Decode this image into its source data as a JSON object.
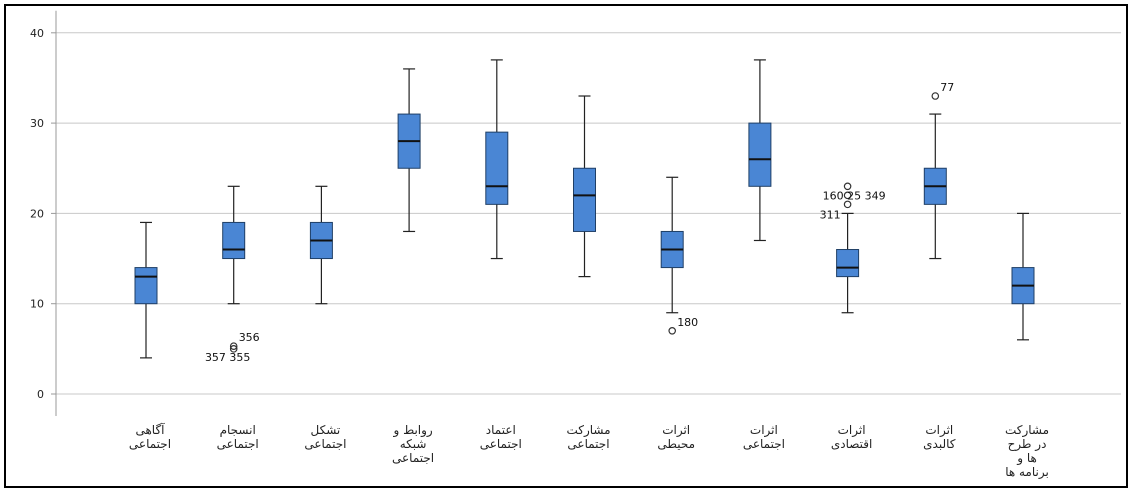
{
  "chart_data": {
    "type": "boxplot",
    "ylim": [
      -2,
      42
    ],
    "yticks": [
      0,
      10,
      20,
      30,
      40
    ],
    "grid": true,
    "colors": {
      "box": "#4a86d4",
      "box_edge": "#1f3f66",
      "grid": "#c8c8c8"
    },
    "categories": [
      {
        "label": [
          "آگاهی",
          "اجتماعی"
        ],
        "min": 4,
        "q1": 10,
        "median": 13,
        "q3": 14,
        "max": 19,
        "outliers": []
      },
      {
        "label": [
          "انسجام",
          "اجتماعی"
        ],
        "min": 10,
        "q1": 15,
        "median": 16,
        "q3": 19,
        "max": 23,
        "outliers": [
          {
            "value": 5.3,
            "ids": [
              "356"
            ]
          },
          {
            "value": 5.0,
            "ids": [
              "357",
              "355"
            ]
          }
        ]
      },
      {
        "label": [
          "تشکل",
          "اجتماعی"
        ],
        "min": 10,
        "q1": 15,
        "median": 17,
        "q3": 19,
        "max": 23,
        "outliers": []
      },
      {
        "label": [
          "روابط و",
          "شبکه",
          "اجتماعی"
        ],
        "min": 18,
        "q1": 25,
        "median": 28,
        "q3": 31,
        "max": 36,
        "outliers": []
      },
      {
        "label": [
          "اعتماد",
          "اجتماعی"
        ],
        "min": 15,
        "q1": 21,
        "median": 23,
        "q3": 29,
        "max": 37,
        "outliers": []
      },
      {
        "label": [
          "مشارکت",
          "اجتماعی"
        ],
        "min": 13,
        "q1": 18,
        "median": 22,
        "q3": 25,
        "max": 33,
        "outliers": []
      },
      {
        "label": [
          "اثرات",
          "محیطی"
        ],
        "min": 9,
        "q1": 14,
        "median": 16,
        "q3": 18,
        "max": 24,
        "outliers": [
          {
            "value": 7,
            "ids": [
              "180"
            ]
          }
        ]
      },
      {
        "label": [
          "اثرات",
          "اجتماعی"
        ],
        "min": 17,
        "q1": 23,
        "median": 26,
        "q3": 30,
        "max": 37,
        "outliers": []
      },
      {
        "label": [
          "اثرات",
          "اقتصادی"
        ],
        "min": 9,
        "q1": 13,
        "median": 14,
        "q3": 16,
        "max": 20,
        "outliers": [
          {
            "value": 23,
            "ids": []
          },
          {
            "value": 22,
            "ids": [
              "160",
              "25",
              "349"
            ]
          },
          {
            "value": 21,
            "ids": [
              "311"
            ]
          }
        ]
      },
      {
        "label": [
          "اثرات",
          "کالبدی"
        ],
        "min": 15,
        "q1": 21,
        "median": 23,
        "q3": 25,
        "max": 31,
        "outliers": [
          {
            "value": 33,
            "ids": [
              "77"
            ]
          }
        ]
      },
      {
        "label": [
          "مشارکت",
          "در طرح",
          "ها و",
          "برنامه ها"
        ],
        "min": 6,
        "q1": 10,
        "median": 12,
        "q3": 14,
        "max": 20,
        "outliers": []
      }
    ]
  }
}
